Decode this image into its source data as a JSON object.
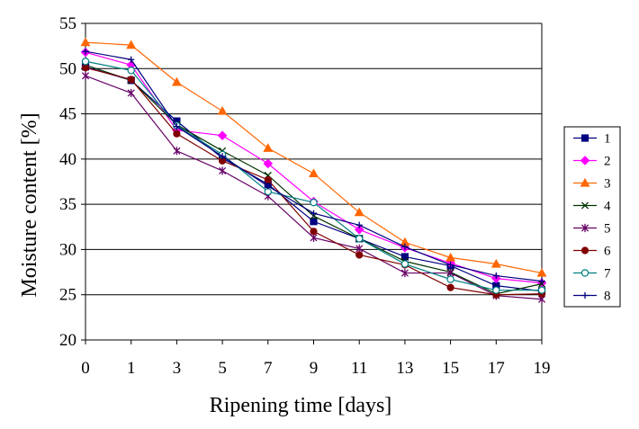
{
  "chart_data": {
    "type": "line",
    "title": "",
    "xlabel": "Ripening time [days]",
    "ylabel": "Moisture content  [%]",
    "x": [
      "0",
      "1",
      "3",
      "5",
      "7",
      "9",
      "11",
      "13",
      "15",
      "17",
      "19"
    ],
    "ylim": [
      20,
      55
    ],
    "yticks": [
      "20",
      "25",
      "30",
      "35",
      "40",
      "45",
      "50",
      "55"
    ],
    "grid": "horizontal",
    "legend_position": "right",
    "series": [
      {
        "name": "1",
        "color": "#000080",
        "marker": "square",
        "values": [
          50.2,
          48.7,
          44.2,
          40.1,
          37.2,
          33.1,
          31.2,
          29.2,
          28.2,
          26.0,
          25.4
        ]
      },
      {
        "name": "2",
        "color": "#ff00ff",
        "marker": "diamond",
        "values": [
          51.8,
          50.4,
          43.2,
          42.6,
          39.5,
          35.3,
          32.2,
          30.2,
          28.5,
          26.8,
          26.3
        ]
      },
      {
        "name": "3",
        "color": "#ff6600",
        "marker": "triangle",
        "values": [
          52.9,
          52.6,
          48.5,
          45.3,
          41.2,
          38.4,
          34.1,
          30.8,
          29.1,
          28.4,
          27.4
        ]
      },
      {
        "name": "4",
        "color": "#003300",
        "marker": "x",
        "values": [
          50.4,
          48.7,
          43.8,
          40.9,
          38.2,
          33.7,
          31.2,
          28.7,
          27.5,
          25.1,
          26.2
        ]
      },
      {
        "name": "5",
        "color": "#660066",
        "marker": "star",
        "values": [
          49.2,
          47.3,
          40.9,
          38.7,
          35.9,
          31.3,
          30.1,
          27.4,
          27.4,
          24.9,
          24.5
        ]
      },
      {
        "name": "6",
        "color": "#800000",
        "marker": "circle",
        "values": [
          50.1,
          48.8,
          42.8,
          39.8,
          37.7,
          32.0,
          29.4,
          28.3,
          25.8,
          25.0,
          25.1
        ]
      },
      {
        "name": "7",
        "color": "#008080",
        "marker": "circle-open",
        "values": [
          50.8,
          49.8,
          43.7,
          40.5,
          36.4,
          35.2,
          31.2,
          28.4,
          26.7,
          25.5,
          25.5
        ]
      },
      {
        "name": "8",
        "color": "#000080",
        "marker": "plus",
        "values": [
          51.9,
          51.0,
          43.6,
          40.3,
          37.0,
          34.0,
          32.7,
          30.3,
          28.3,
          27.1,
          26.5
        ]
      }
    ]
  }
}
